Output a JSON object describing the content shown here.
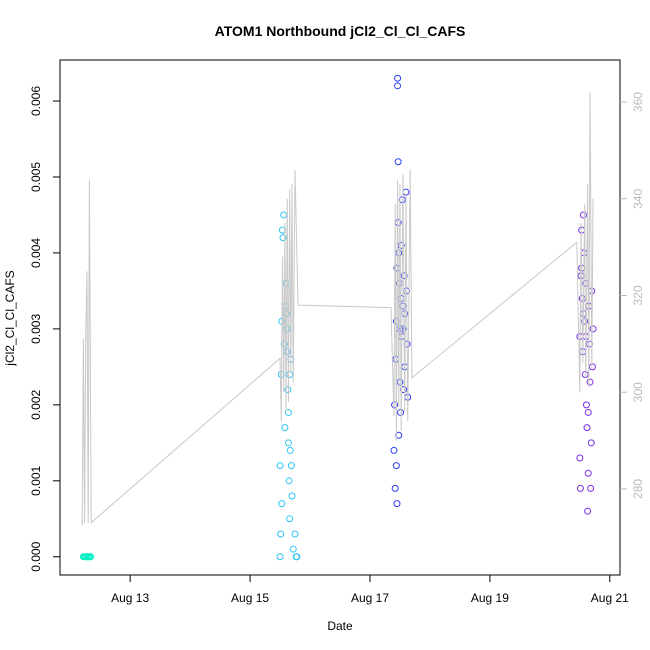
{
  "chart_data": {
    "type": "scatter",
    "title": "ATOM1 Northbound jCl2_Cl_Cl_CAFS",
    "xlabel": "Date",
    "ylabel": "jCl2_Cl_Cl_CAFS",
    "xlim": [
      11.83,
      21.17
    ],
    "xticks": [
      {
        "value": 13,
        "label": "Aug 13"
      },
      {
        "value": 15,
        "label": "Aug 15"
      },
      {
        "value": 17,
        "label": "Aug 17"
      },
      {
        "value": 19,
        "label": "Aug 19"
      },
      {
        "value": 21,
        "label": "Aug 21"
      }
    ],
    "ylim": [
      -0.00024,
      0.00654
    ],
    "yticks": [
      {
        "value": 0,
        "label": "0.000"
      },
      0.001,
      0.002,
      0.003,
      0.004,
      0.005,
      0.006
    ],
    "y2lim": [
      262.2,
      368.7
    ],
    "y2ticks": [
      280,
      300,
      320,
      340,
      360
    ],
    "y2color": "#bbbbbb",
    "series": [
      {
        "color": "#00f0c4",
        "x": [
          12.22,
          12.24,
          12.26,
          12.28,
          12.3,
          12.32,
          12.34
        ],
        "values": [
          0,
          0,
          0,
          0,
          0,
          0,
          0
        ]
      },
      {
        "color": "#2ec5f5",
        "x": [
          15.5,
          15.5,
          15.52,
          15.53,
          15.55,
          15.56,
          15.57,
          15.58,
          15.6,
          15.61,
          15.62,
          15.63,
          15.64,
          15.65,
          15.66,
          15.67,
          15.68,
          15.7,
          15.72,
          15.75,
          15.77,
          15.78,
          15.54,
          15.59,
          15.62,
          15.51,
          15.53,
          15.64,
          15.66,
          15.69
        ],
        "values": [
          0.0,
          0.0012,
          0.0024,
          0.0031,
          0.0042,
          0.0045,
          0.0028,
          0.0017,
          0.0036,
          0.0032,
          0.003,
          0.0022,
          0.0019,
          0.001,
          0.0005,
          0.0014,
          0.0026,
          0.0008,
          0.0001,
          0.0003,
          0.0,
          0.0,
          0.0043,
          0.0033,
          0.0027,
          0.0003,
          0.0007,
          0.0015,
          0.0024,
          0.0012
        ]
      },
      {
        "color": "#2a3cf5",
        "x": [
          17.4,
          17.41,
          17.42,
          17.43,
          17.44,
          17.45,
          17.46,
          17.46,
          17.47,
          17.47,
          17.48,
          17.49,
          17.5,
          17.5,
          17.51,
          17.52,
          17.53,
          17.54,
          17.55,
          17.56,
          17.57,
          17.58,
          17.6,
          17.61,
          17.62,
          17.63,
          17.44,
          17.45,
          17.48,
          17.52,
          17.55,
          17.58
        ],
        "values": [
          0.0014,
          0.002,
          0.0009,
          0.0026,
          0.0031,
          0.0038,
          0.0063,
          0.0062,
          0.0052,
          0.0044,
          0.004,
          0.0036,
          0.003,
          0.0023,
          0.0019,
          0.0034,
          0.0029,
          0.0047,
          0.0033,
          0.0022,
          0.0037,
          0.0025,
          0.0048,
          0.0035,
          0.0028,
          0.0021,
          0.0012,
          0.0007,
          0.0016,
          0.0041,
          0.003,
          0.0032
        ]
      },
      {
        "color": "#7a2ee8",
        "x": [
          20.5,
          20.5,
          20.51,
          20.52,
          20.53,
          20.54,
          20.55,
          20.56,
          20.57,
          20.58,
          20.59,
          20.6,
          20.61,
          20.62,
          20.63,
          20.64,
          20.65,
          20.66,
          20.67,
          20.68,
          20.69,
          20.7,
          20.71,
          20.72,
          20.53,
          20.56,
          20.6,
          20.64
        ],
        "values": [
          0.0029,
          0.0013,
          0.0009,
          0.0037,
          0.0043,
          0.0034,
          0.0027,
          0.0045,
          0.004,
          0.0031,
          0.0024,
          0.0036,
          0.002,
          0.0017,
          0.0006,
          0.0011,
          0.0033,
          0.0028,
          0.0023,
          0.0009,
          0.0015,
          0.0035,
          0.0025,
          0.003,
          0.0038,
          0.0032,
          0.0029,
          0.0019
        ]
      },
      {
        "color": "#c8c8c8",
        "axis": "y2",
        "line": true,
        "x": [
          12.2,
          12.22,
          12.24,
          12.26,
          12.28,
          12.3,
          12.32,
          12.35,
          15.5,
          15.52,
          15.54,
          15.56,
          15.58,
          15.6,
          15.62,
          15.64,
          15.66,
          15.68,
          15.7,
          15.72,
          15.75,
          15.8,
          17.35,
          17.4,
          17.42,
          17.44,
          17.46,
          17.48,
          17.5,
          17.52,
          17.55,
          17.58,
          17.6,
          17.63,
          17.67,
          17.7,
          20.45,
          20.5,
          20.52,
          20.55,
          20.58,
          20.6,
          20.63,
          20.65,
          20.67,
          20.7,
          20.72
        ],
        "values": [
          272.5,
          311,
          273,
          312,
          325,
          273,
          344,
          273,
          307,
          294,
          328,
          300,
          335,
          296,
          340,
          298,
          342,
          304,
          343,
          302,
          346,
          318,
          317.5,
          295,
          339,
          290,
          344,
          297,
          343,
          292,
          345,
          296,
          341,
          294,
          346,
          303,
          331,
          300,
          335,
          306,
          339,
          303,
          343,
          301,
          362,
          305,
          340
        ]
      }
    ]
  }
}
